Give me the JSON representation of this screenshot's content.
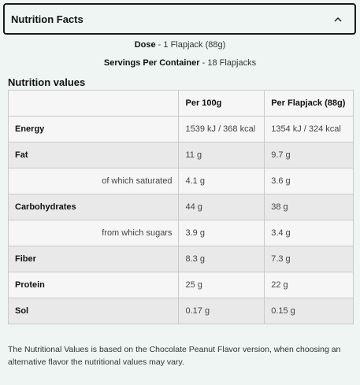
{
  "accordion": {
    "title": "Nutrition Facts"
  },
  "dose": {
    "label": "Dose",
    "value": "1 Flapjack (88g)"
  },
  "servings": {
    "label": "Servings Per Container",
    "value": "18 Flapjacks"
  },
  "section_title": "Nutrition values",
  "table": {
    "headers": [
      "",
      "Per 100g",
      "Per Flapjack (88g)"
    ],
    "rows": [
      {
        "name": "Energy",
        "sub": false,
        "per100": "1539 kJ / 368 kcal",
        "perServing": "1354 kJ / 324 kcal"
      },
      {
        "name": "Fat",
        "sub": false,
        "per100": "11 g",
        "perServing": "9.7 g"
      },
      {
        "name": "of which saturated",
        "sub": true,
        "per100": "4.1 g",
        "perServing": "3.6 g"
      },
      {
        "name": "Carbohydrates",
        "sub": false,
        "per100": "44 g",
        "perServing": "38 g"
      },
      {
        "name": "from which sugars",
        "sub": true,
        "per100": "3.9 g",
        "perServing": "3.4 g"
      },
      {
        "name": "Fiber",
        "sub": false,
        "per100": "8.3 g",
        "perServing": "7.3 g"
      },
      {
        "name": "Protein",
        "sub": false,
        "per100": "25 g",
        "perServing": "22 g"
      },
      {
        "name": "Sol",
        "sub": false,
        "per100": "0.17 g",
        "perServing": "0.15 g"
      }
    ]
  },
  "footnote": "The Nutritional Values is based on the Chocolate Peanut Flavor version, when choosing an alternative flavor the nutritional values may vary."
}
